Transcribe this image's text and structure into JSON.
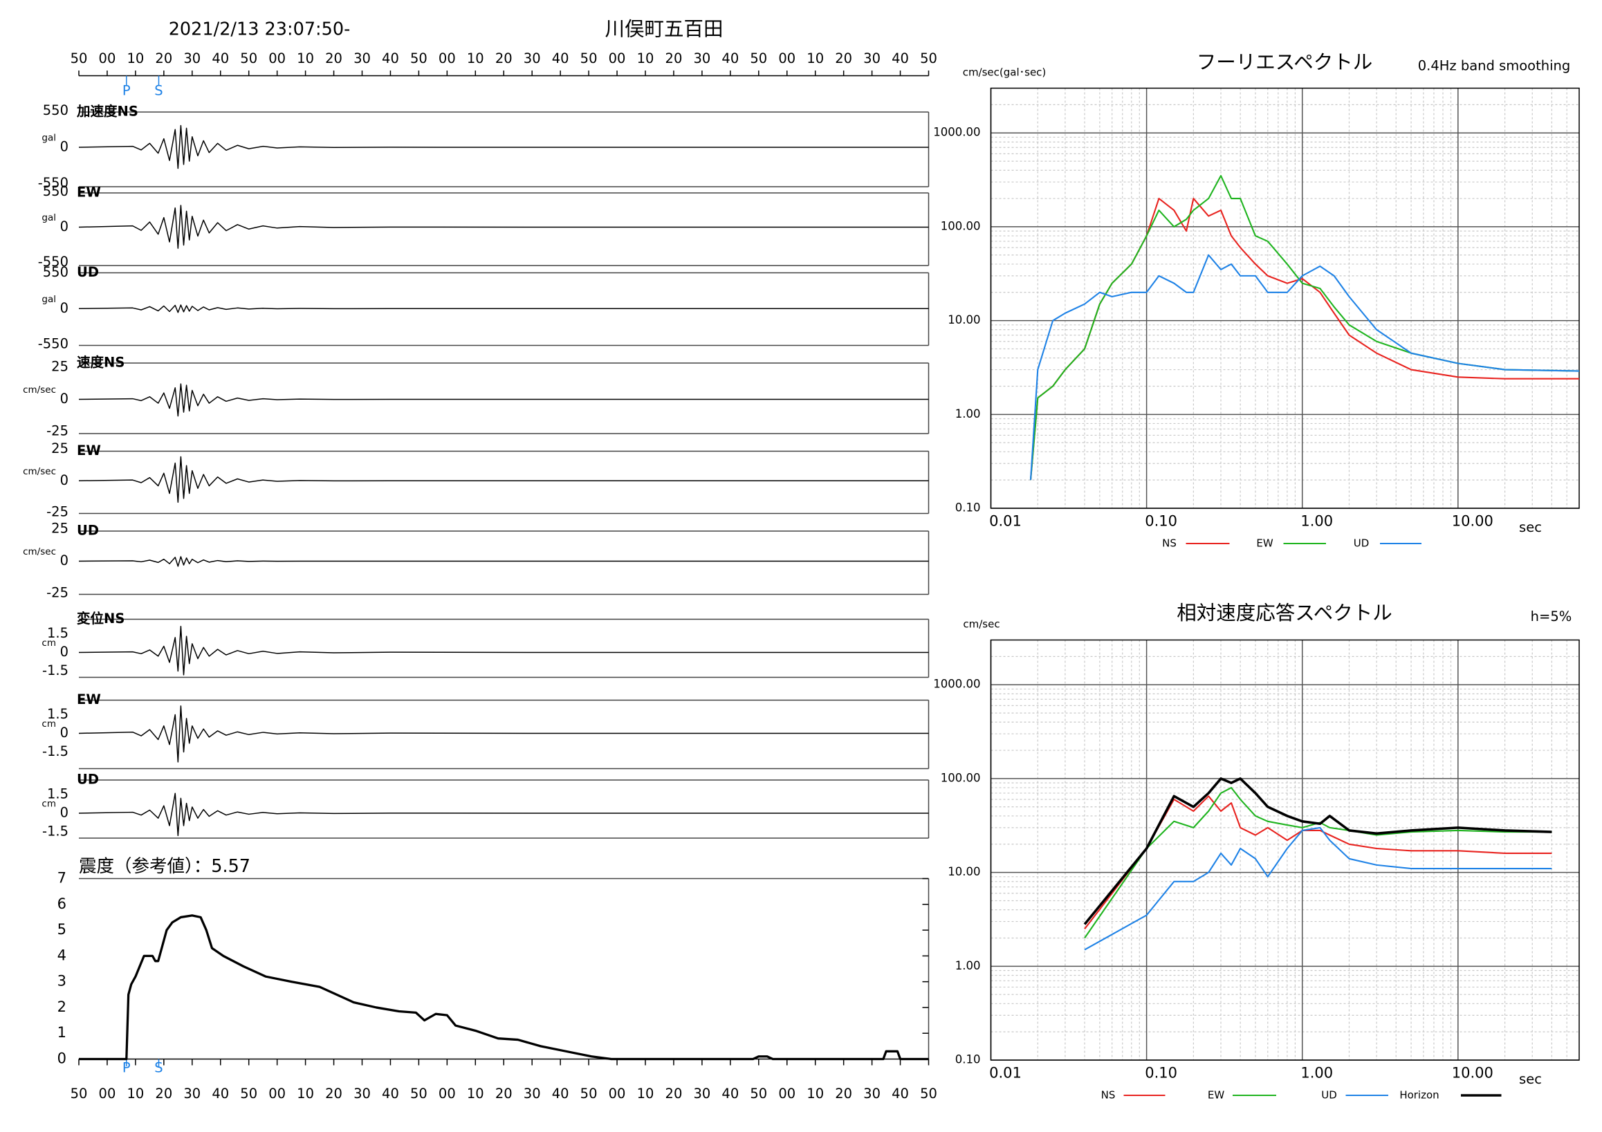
{
  "header": {
    "datetime": "2021/2/13 23:07:50-",
    "station": "川俣町五百田"
  },
  "chart_data": [
    {
      "type": "waveform",
      "xlim": [
        0,
        300
      ],
      "xticks": [
        {
          "value": 0,
          "label": "50"
        },
        {
          "value": 10,
          "label": "00"
        },
        {
          "value": 20,
          "label": "10"
        },
        {
          "value": 30,
          "label": "20"
        },
        {
          "value": 40,
          "label": "30"
        },
        {
          "value": 50,
          "label": "40"
        },
        {
          "value": 60,
          "label": "50"
        },
        {
          "value": 70,
          "label": "00"
        },
        {
          "value": 80,
          "label": "10"
        },
        {
          "value": 90,
          "label": "20"
        },
        {
          "value": 100,
          "label": "30"
        },
        {
          "value": 110,
          "label": "40"
        },
        {
          "value": 120,
          "label": "50"
        },
        {
          "value": 130,
          "label": "00"
        },
        {
          "value": 140,
          "label": "10"
        },
        {
          "value": 150,
          "label": "20"
        },
        {
          "value": 160,
          "label": "30"
        },
        {
          "value": 170,
          "label": "40"
        },
        {
          "value": 180,
          "label": "50"
        },
        {
          "value": 190,
          "label": "00"
        },
        {
          "value": 200,
          "label": "10"
        },
        {
          "value": 210,
          "label": "20"
        },
        {
          "value": 220,
          "label": "30"
        },
        {
          "value": 230,
          "label": "40"
        },
        {
          "value": 240,
          "label": "50"
        },
        {
          "value": 250,
          "label": "00"
        },
        {
          "value": 260,
          "label": "10"
        },
        {
          "value": 270,
          "label": "20"
        },
        {
          "value": 280,
          "label": "30"
        },
        {
          "value": 290,
          "label": "40"
        },
        {
          "value": 300,
          "label": "50"
        }
      ],
      "markers": [
        {
          "label": "P",
          "value": 16.8
        },
        {
          "label": "S",
          "value": 28.2
        }
      ],
      "marker_color": "#1e82e6",
      "color": "#000000",
      "x": [
        0,
        19,
        22,
        25,
        28,
        30,
        32,
        34,
        35,
        36,
        37,
        38,
        39,
        40,
        42,
        44,
        46,
        49,
        52,
        56,
        60,
        65,
        70,
        78,
        90,
        110,
        160,
        300
      ],
      "panels": [
        {
          "label": "加速度NS",
          "unit": "gal",
          "ylim": [
            -550,
            550
          ],
          "yticks": [
            -550,
            0,
            550
          ],
          "values": [
            0,
            15,
            -40,
            60,
            -90,
            130,
            -200,
            270,
            -320,
            330,
            -260,
            290,
            -210,
            160,
            -130,
            100,
            -80,
            60,
            -45,
            30,
            -22,
            15,
            -10,
            6,
            -3,
            1,
            0,
            0
          ]
        },
        {
          "label": "EW",
          "unit": "gal",
          "ylim": [
            -550,
            550
          ],
          "yticks": [
            -550,
            0,
            550
          ],
          "values": [
            0,
            20,
            -50,
            80,
            -110,
            150,
            -230,
            300,
            -330,
            340,
            -280,
            250,
            -200,
            170,
            -140,
            110,
            -90,
            70,
            -55,
            40,
            -30,
            20,
            -14,
            9,
            -5,
            2,
            0,
            0
          ]
        },
        {
          "label": "UD",
          "unit": "gal",
          "ylim": [
            -550,
            550
          ],
          "yticks": [
            -550,
            0,
            550
          ],
          "values": [
            0,
            10,
            -20,
            30,
            -35,
            40,
            -45,
            50,
            -60,
            55,
            -50,
            45,
            -40,
            35,
            -30,
            25,
            -20,
            15,
            -12,
            10,
            -7,
            5,
            -3,
            2,
            -1,
            0,
            0,
            0
          ]
        },
        {
          "label": "速度NS",
          "unit": "cm/sec",
          "ylim": [
            -25,
            25
          ],
          "yticks": [
            -25,
            0,
            25
          ],
          "values": [
            0,
            0.5,
            -1,
            2,
            -3,
            5,
            -7,
            9,
            -13,
            12,
            -10,
            11,
            -9,
            7,
            -5,
            4,
            -3,
            2,
            -1.5,
            1,
            -0.8,
            0.5,
            -0.3,
            0.2,
            -0.1,
            0,
            0,
            0
          ]
        },
        {
          "label": "EW",
          "unit": "cm/sec",
          "ylim": [
            -25,
            25
          ],
          "yticks": [
            -25,
            0,
            25
          ],
          "values": [
            0,
            0.6,
            -1.5,
            2.5,
            -4,
            6,
            -10,
            14,
            -17,
            19,
            -14,
            12,
            -10,
            8,
            -6,
            5,
            -4,
            3,
            -2,
            1.5,
            -1,
            0.6,
            -0.4,
            0.2,
            -0.1,
            0,
            0,
            0
          ]
        },
        {
          "label": "UD",
          "unit": "cm/sec",
          "ylim": [
            -25,
            25
          ],
          "yticks": [
            -25,
            0,
            25
          ],
          "values": [
            0,
            0.3,
            -0.5,
            0.8,
            -1,
            1.5,
            -2,
            3,
            -4,
            3.5,
            -3,
            2.5,
            -2,
            1.5,
            -1.2,
            1,
            -0.8,
            0.5,
            -0.4,
            0.3,
            -0.2,
            0.1,
            -0.1,
            0,
            0,
            0,
            0,
            0
          ]
        },
        {
          "label": "変位NS",
          "unit": "cm",
          "ylim": [
            -1.5,
            1.5
          ],
          "yticks": [
            -1.5,
            0,
            1.5
          ],
          "values": [
            0,
            0.05,
            -0.1,
            0.2,
            -0.3,
            0.5,
            -0.8,
            1.2,
            -1.5,
            2.1,
            -1.8,
            1.3,
            -0.9,
            0.7,
            -0.5,
            0.4,
            -0.3,
            0.25,
            -0.2,
            0.15,
            -0.1,
            0.1,
            -0.08,
            0.05,
            -0.03,
            0.02,
            0,
            0
          ]
        },
        {
          "label": "EW",
          "unit": "cm",
          "ylim": [
            -1.5,
            1.5
          ],
          "yticks": [
            -1.5,
            0,
            1.5
          ],
          "values": [
            0,
            0.1,
            -0.2,
            0.3,
            -0.5,
            0.6,
            -0.9,
            1.5,
            -2.3,
            2.2,
            -1.5,
            1.2,
            -0.8,
            0.6,
            -0.4,
            0.35,
            -0.3,
            0.2,
            -0.15,
            0.12,
            -0.1,
            0.08,
            -0.05,
            0.04,
            -0.03,
            0.02,
            0,
            0
          ]
        },
        {
          "label": "UD",
          "unit": "cm",
          "ylim": [
            -1.5,
            1.5
          ],
          "yticks": [
            -1.5,
            0,
            1.5
          ],
          "values": [
            0,
            0.08,
            -0.15,
            0.25,
            -0.4,
            0.6,
            -1.0,
            1.6,
            -1.8,
            1.2,
            -1.0,
            0.8,
            -0.6,
            0.5,
            -0.4,
            0.3,
            -0.25,
            0.2,
            -0.15,
            0.1,
            -0.08,
            0.06,
            -0.04,
            0.03,
            -0.02,
            0.01,
            0,
            0
          ]
        }
      ]
    },
    {
      "type": "line",
      "title": "震度（参考値）：5.57",
      "xlim": [
        0,
        300
      ],
      "ylim": [
        0,
        7
      ],
      "yticks": [
        0,
        1,
        2,
        3,
        4,
        5,
        6,
        7
      ],
      "color": "#000000",
      "x": [
        0,
        16.8,
        17.5,
        18.5,
        20,
        23,
        26,
        27,
        28,
        29,
        31,
        33,
        36,
        40,
        43,
        45,
        47,
        51,
        58,
        66,
        75,
        85,
        97,
        105,
        113,
        119,
        122,
        126,
        130,
        133,
        140,
        148,
        155,
        163,
        172,
        181,
        188,
        238,
        240,
        243,
        245,
        284,
        285,
        289,
        290,
        300
      ],
      "values": [
        0,
        0,
        2.5,
        2.9,
        3.2,
        4.0,
        4.0,
        3.8,
        3.8,
        4.2,
        5.0,
        5.3,
        5.5,
        5.57,
        5.5,
        5.0,
        4.3,
        4.0,
        3.6,
        3.2,
        3.0,
        2.8,
        2.2,
        2.0,
        1.85,
        1.8,
        1.5,
        1.75,
        1.7,
        1.3,
        1.1,
        0.8,
        0.75,
        0.5,
        0.3,
        0.1,
        0,
        0,
        0.1,
        0.1,
        0,
        0,
        0.3,
        0.3,
        0,
        0
      ]
    },
    {
      "type": "line",
      "title": "フーリエスペクトル",
      "subtitle": "0.4Hz band smoothing",
      "ylabel": "cm/sec(gal･sec)",
      "xlabel": "sec",
      "log_x": true,
      "log_y": true,
      "grid": true,
      "minor_grid": true,
      "xlim": [
        0.01,
        60
      ],
      "ylim": [
        0.1,
        3000
      ],
      "xticks": [
        {
          "value": 0.01,
          "label": "0.01"
        },
        {
          "value": 0.1,
          "label": "0.10"
        },
        {
          "value": 1,
          "label": "1.00"
        },
        {
          "value": 10,
          "label": "10.00"
        }
      ],
      "yticks": [
        {
          "value": 0.1,
          "label": "0.10"
        },
        {
          "value": 1,
          "label": "1.00"
        },
        {
          "value": 10,
          "label": "10.00"
        },
        {
          "value": 100,
          "label": "100.00"
        },
        {
          "value": 1000,
          "label": "1000.00"
        }
      ],
      "x": [
        0.018,
        0.02,
        0.025,
        0.03,
        0.04,
        0.05,
        0.06,
        0.08,
        0.1,
        0.12,
        0.15,
        0.18,
        0.2,
        0.25,
        0.3,
        0.35,
        0.4,
        0.5,
        0.6,
        0.8,
        1.0,
        1.3,
        1.6,
        2,
        3,
        5,
        10,
        20,
        60
      ],
      "series": [
        {
          "name": "NS",
          "color": "#e8231f",
          "values": [
            0.2,
            1.5,
            2,
            3,
            5,
            15,
            25,
            40,
            80,
            200,
            150,
            90,
            200,
            130,
            150,
            80,
            60,
            40,
            30,
            25,
            28,
            20,
            12,
            7,
            4.5,
            3,
            2.5,
            2.4,
            2.4
          ]
        },
        {
          "name": "EW",
          "color": "#1fb41f",
          "values": [
            0.2,
            1.5,
            2,
            3,
            5,
            15,
            25,
            40,
            80,
            150,
            100,
            120,
            150,
            200,
            350,
            200,
            200,
            80,
            70,
            40,
            25,
            22,
            14,
            9,
            6,
            4.5,
            3.5,
            3,
            2.9
          ]
        },
        {
          "name": "UD",
          "color": "#1e82e6",
          "values": [
            0.2,
            3,
            10,
            12,
            15,
            20,
            18,
            20,
            20,
            30,
            25,
            20,
            20,
            50,
            35,
            40,
            30,
            30,
            20,
            20,
            30,
            38,
            30,
            18,
            8,
            4.5,
            3.5,
            3,
            2.9
          ]
        }
      ]
    },
    {
      "type": "line",
      "title": "相対速度応答スペクトル",
      "subtitle": "h=5%",
      "ylabel": "cm/sec",
      "xlabel": "sec",
      "log_x": true,
      "log_y": true,
      "grid": true,
      "minor_grid": true,
      "xlim": [
        0.01,
        60
      ],
      "ylim": [
        0.1,
        3000
      ],
      "xticks": [
        {
          "value": 0.01,
          "label": "0.01"
        },
        {
          "value": 0.1,
          "label": "0.10"
        },
        {
          "value": 1,
          "label": "1.00"
        },
        {
          "value": 10,
          "label": "10.00"
        }
      ],
      "yticks": [
        {
          "value": 0.1,
          "label": "0.10"
        },
        {
          "value": 1,
          "label": "1.00"
        },
        {
          "value": 10,
          "label": "10.00"
        },
        {
          "value": 100,
          "label": "100.00"
        },
        {
          "value": 1000,
          "label": "1000.00"
        }
      ],
      "x": [
        0.04,
        0.1,
        0.15,
        0.2,
        0.25,
        0.3,
        0.35,
        0.4,
        0.5,
        0.6,
        0.8,
        1.0,
        1.3,
        1.5,
        2,
        3,
        5,
        10,
        20,
        40
      ],
      "series": [
        {
          "name": "NS",
          "color": "#e8231f",
          "values": [
            2.5,
            18,
            60,
            45,
            65,
            45,
            55,
            30,
            25,
            30,
            22,
            28,
            28,
            25,
            20,
            18,
            17,
            17,
            16,
            16
          ]
        },
        {
          "name": "EW",
          "color": "#1fb41f",
          "values": [
            2,
            18,
            35,
            30,
            45,
            70,
            80,
            60,
            40,
            35,
            32,
            30,
            34,
            30,
            28,
            25,
            27,
            28,
            27,
            27
          ]
        },
        {
          "name": "UD",
          "color": "#1e82e6",
          "values": [
            1.5,
            3.5,
            8,
            8,
            10,
            16,
            12,
            18,
            14,
            9,
            18,
            28,
            30,
            22,
            14,
            12,
            11,
            11,
            11,
            11
          ]
        },
        {
          "name": "Horizon",
          "color": "#000000",
          "values": [
            2.8,
            18,
            65,
            50,
            70,
            100,
            90,
            100,
            70,
            50,
            40,
            35,
            33,
            40,
            28,
            26,
            28,
            30,
            28,
            27
          ]
        }
      ]
    }
  ]
}
